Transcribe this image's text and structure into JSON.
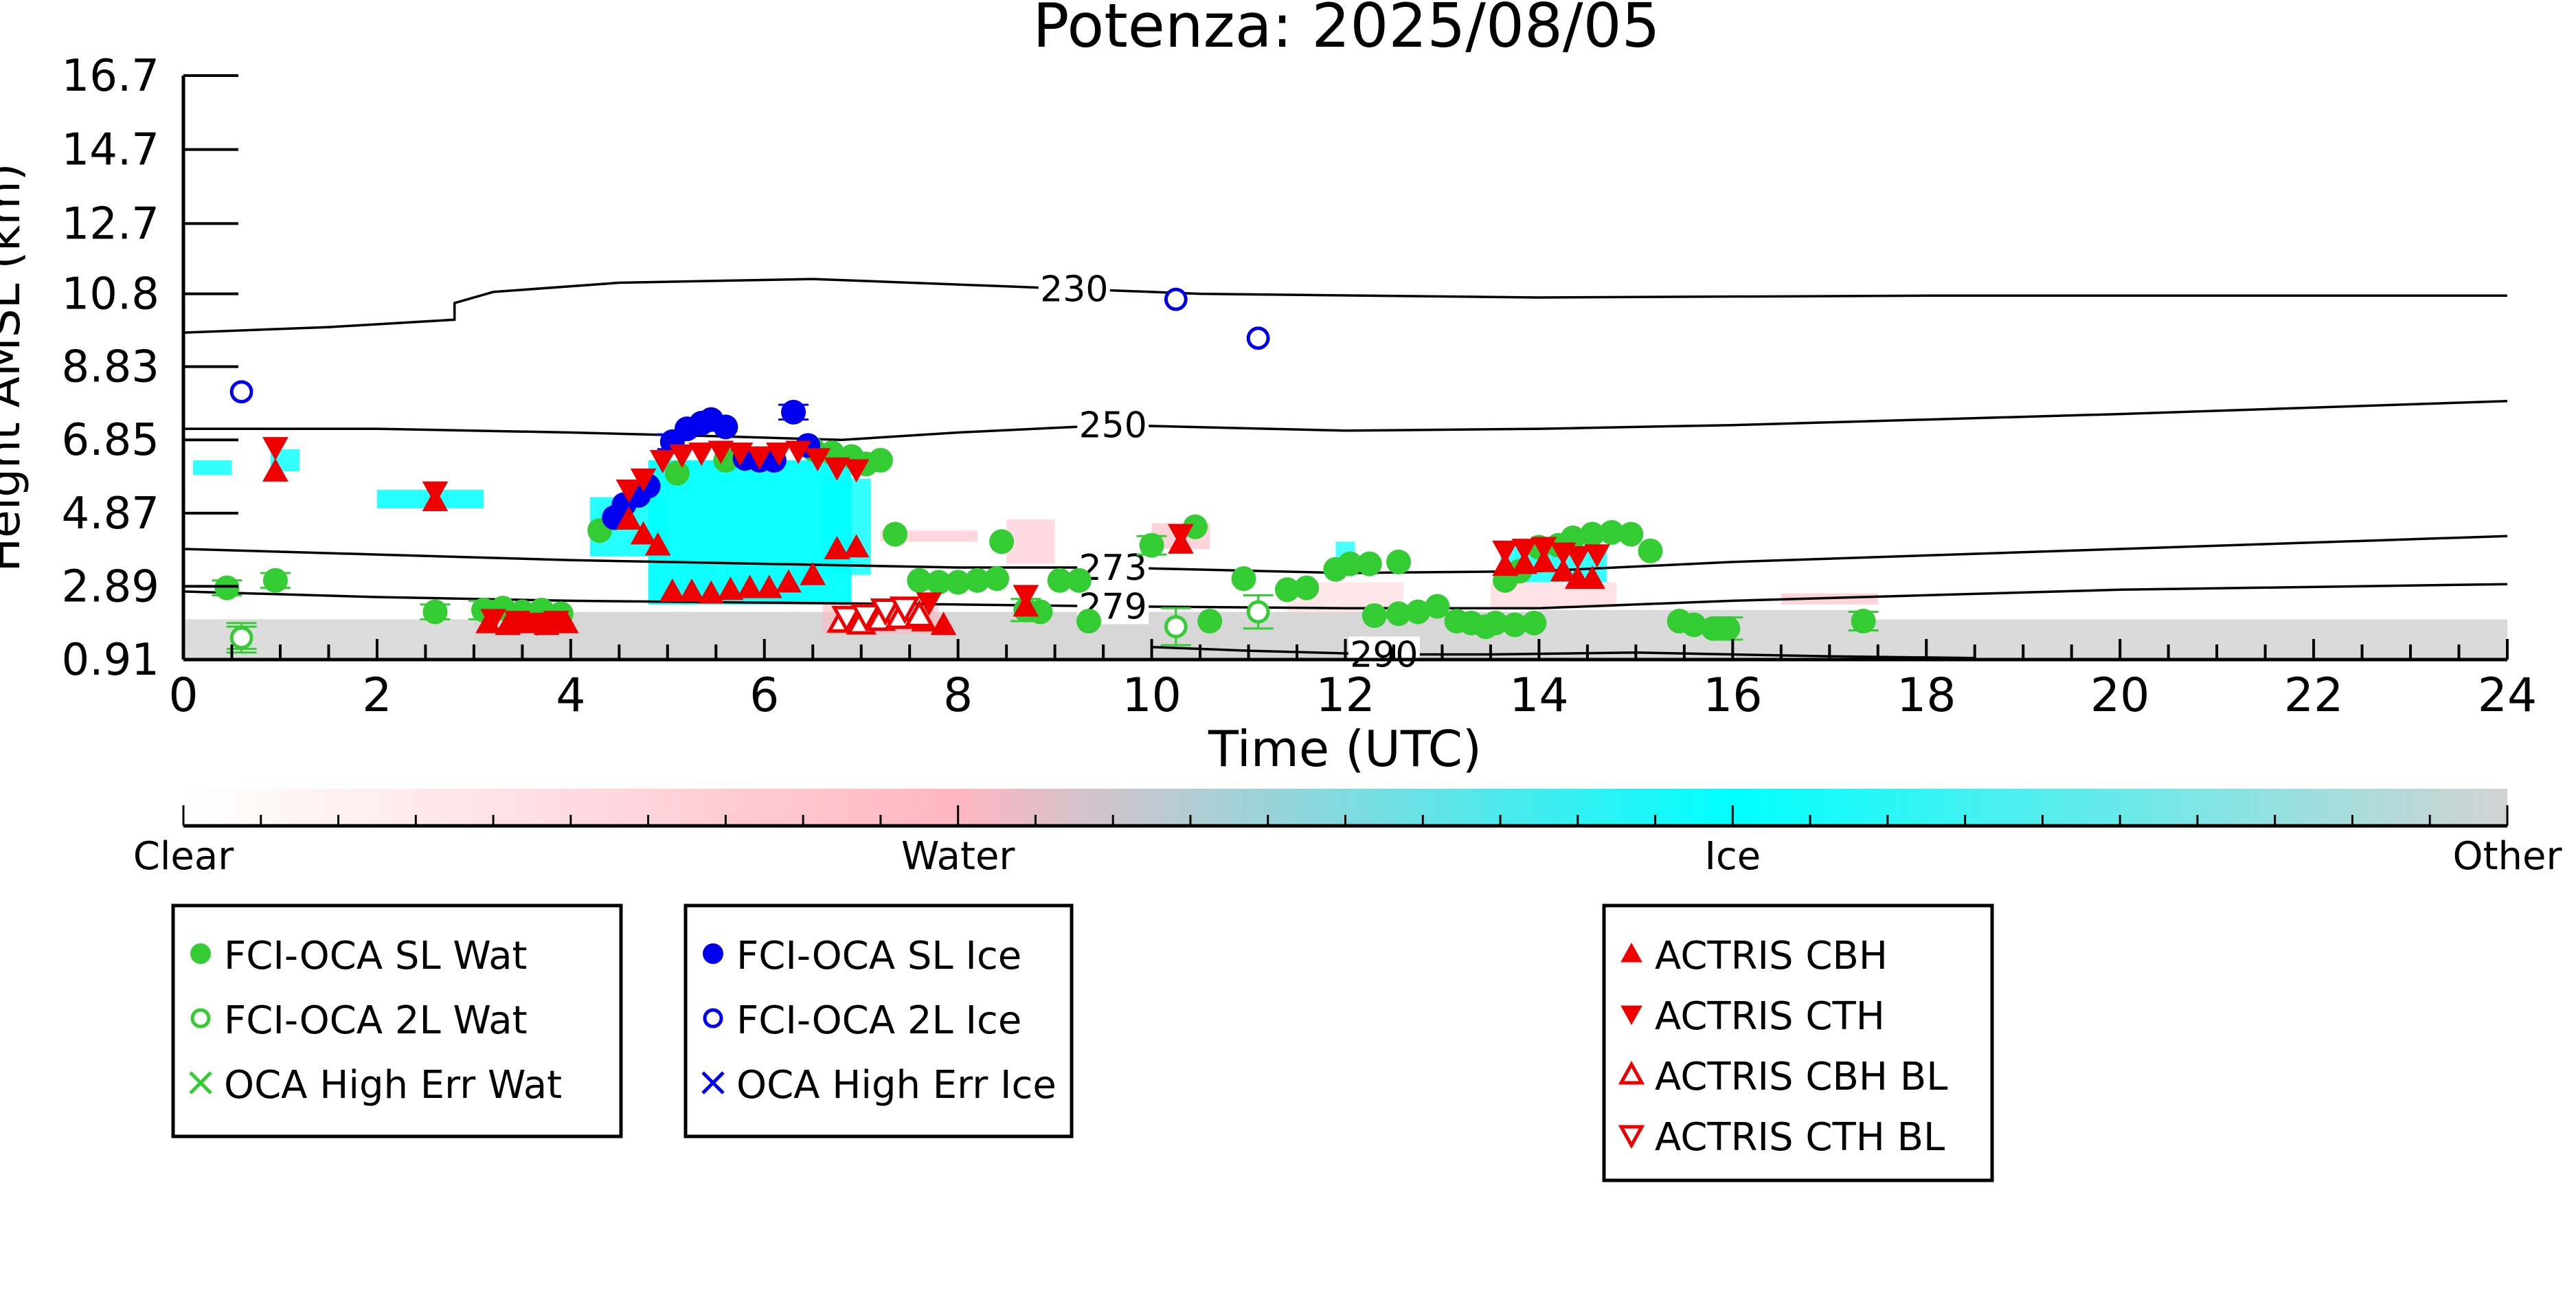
{
  "chart_data": {
    "type": "scatter",
    "title": "Potenza: 2025/08/05",
    "xlabel": "Time (UTC)",
    "ylabel": "Height AMSL (km)",
    "xlim": [
      0,
      24
    ],
    "ylim": [
      0.91,
      16.7
    ],
    "xticks": [
      "0",
      "2",
      "4",
      "6",
      "8",
      "10",
      "12",
      "14",
      "16",
      "18",
      "20",
      "22",
      "24"
    ],
    "yticks": [
      "0.91",
      "2.89",
      "4.87",
      "6.85",
      "8.83",
      "10.8",
      "12.7",
      "14.7",
      "16.7"
    ],
    "ytick_values": [
      0.91,
      2.89,
      4.87,
      6.85,
      8.83,
      10.8,
      12.7,
      14.7,
      16.7
    ],
    "colorbar": {
      "labels": [
        "Clear",
        "Water",
        "Ice",
        "Other"
      ],
      "colors": [
        "#ffffff",
        "#ffb6c1",
        "#00ffff",
        "#d3d3d3"
      ]
    },
    "contours": [
      {
        "label": "230",
        "label_x": 9.2,
        "points": [
          [
            0,
            9.75
          ],
          [
            1.5,
            9.9
          ],
          [
            2.8,
            10.1
          ],
          [
            2.8,
            10.55
          ],
          [
            3.2,
            10.85
          ],
          [
            4.5,
            11.1
          ],
          [
            6.5,
            11.2
          ],
          [
            8.5,
            11.0
          ],
          [
            10.5,
            10.8
          ],
          [
            14,
            10.7
          ],
          [
            18,
            10.75
          ],
          [
            24,
            10.75
          ]
        ]
      },
      {
        "label": "250",
        "label_x": 9.6,
        "points": [
          [
            0,
            7.15
          ],
          [
            2,
            7.15
          ],
          [
            4,
            7.05
          ],
          [
            5.5,
            6.95
          ],
          [
            6.8,
            6.85
          ],
          [
            8,
            7.05
          ],
          [
            9.6,
            7.25
          ],
          [
            12,
            7.1
          ],
          [
            14,
            7.15
          ],
          [
            16,
            7.25
          ],
          [
            20,
            7.55
          ],
          [
            24,
            7.9
          ]
        ]
      },
      {
        "label": "273",
        "label_x": 9.6,
        "points": [
          [
            0,
            3.9
          ],
          [
            2,
            3.75
          ],
          [
            4,
            3.6
          ],
          [
            6,
            3.5
          ],
          [
            8,
            3.4
          ],
          [
            9.6,
            3.4
          ],
          [
            12,
            3.25
          ],
          [
            14,
            3.3
          ],
          [
            16,
            3.55
          ],
          [
            20,
            3.9
          ],
          [
            24,
            4.25
          ]
        ]
      },
      {
        "label": "279",
        "label_x": 9.6,
        "points": [
          [
            0,
            2.75
          ],
          [
            2,
            2.6
          ],
          [
            4,
            2.5
          ],
          [
            6,
            2.45
          ],
          [
            8,
            2.4
          ],
          [
            9.6,
            2.35
          ],
          [
            12,
            2.3
          ],
          [
            14,
            2.3
          ],
          [
            16,
            2.5
          ],
          [
            20,
            2.8
          ],
          [
            24,
            2.95
          ]
        ]
      },
      {
        "label": "290",
        "label_x": 12.4,
        "points": [
          [
            10,
            1.25
          ],
          [
            11,
            1.15
          ],
          [
            12.4,
            1.05
          ],
          [
            13.5,
            1.05
          ],
          [
            15,
            1.1
          ],
          [
            17,
            1.0
          ],
          [
            18.5,
            0.95
          ]
        ]
      }
    ],
    "series": [
      {
        "name": "FCI-OCA SL Wat",
        "marker": "circle-filled",
        "color": "#33cc33",
        "points": [
          [
            0.45,
            2.85
          ],
          [
            0.95,
            3.05
          ],
          [
            2.6,
            2.2
          ],
          [
            3.1,
            2.25
          ],
          [
            3.3,
            2.3
          ],
          [
            3.5,
            2.2
          ],
          [
            3.7,
            2.25
          ],
          [
            3.9,
            2.15
          ],
          [
            4.3,
            4.4
          ],
          [
            5.1,
            5.95
          ],
          [
            5.6,
            6.3
          ],
          [
            6.5,
            6.6
          ],
          [
            6.7,
            6.5
          ],
          [
            6.9,
            6.4
          ],
          [
            7.05,
            6.2
          ],
          [
            7.2,
            6.3
          ],
          [
            7.35,
            4.3
          ],
          [
            7.6,
            3.05
          ],
          [
            7.8,
            3.0
          ],
          [
            8.0,
            3.0
          ],
          [
            8.2,
            3.05
          ],
          [
            8.4,
            3.1
          ],
          [
            8.45,
            4.1
          ],
          [
            8.7,
            2.25
          ],
          [
            8.85,
            2.2
          ],
          [
            9.05,
            3.05
          ],
          [
            9.25,
            3.05
          ],
          [
            9.35,
            1.95
          ],
          [
            10.0,
            4.0
          ],
          [
            10.45,
            4.5
          ],
          [
            10.6,
            1.95
          ],
          [
            10.95,
            3.1
          ],
          [
            11.4,
            2.8
          ],
          [
            11.6,
            2.85
          ],
          [
            11.9,
            3.35
          ],
          [
            12.05,
            3.5
          ],
          [
            12.25,
            3.5
          ],
          [
            12.55,
            3.55
          ],
          [
            12.3,
            2.1
          ],
          [
            12.55,
            2.15
          ],
          [
            12.75,
            2.2
          ],
          [
            12.95,
            2.35
          ],
          [
            13.15,
            1.95
          ],
          [
            13.3,
            1.9
          ],
          [
            13.45,
            1.8
          ],
          [
            13.55,
            1.9
          ],
          [
            13.75,
            1.85
          ],
          [
            13.95,
            1.9
          ],
          [
            13.65,
            3.05
          ],
          [
            13.8,
            3.3
          ],
          [
            14.0,
            3.95
          ],
          [
            14.2,
            4.0
          ],
          [
            14.35,
            4.2
          ],
          [
            14.55,
            4.3
          ],
          [
            14.75,
            4.35
          ],
          [
            14.95,
            4.3
          ],
          [
            15.15,
            3.85
          ],
          [
            15.45,
            1.95
          ],
          [
            15.6,
            1.85
          ],
          [
            15.8,
            1.75
          ],
          [
            15.95,
            1.75
          ],
          [
            17.35,
            1.95
          ]
        ]
      },
      {
        "name": "FCI-OCA 2L Wat",
        "marker": "circle-open",
        "color": "#33cc33",
        "points": [
          [
            0.6,
            1.5
          ],
          [
            10.25,
            1.8
          ],
          [
            11.1,
            2.2
          ]
        ]
      },
      {
        "name": "OCA High Err Wat",
        "marker": "x",
        "color": "#33cc33",
        "points": []
      },
      {
        "name": "FCI-OCA SL Ice",
        "marker": "circle-filled",
        "color": "#0000ee",
        "points": [
          [
            4.45,
            4.75
          ],
          [
            4.55,
            5.1
          ],
          [
            4.7,
            5.35
          ],
          [
            4.8,
            5.6
          ],
          [
            5.05,
            6.8
          ],
          [
            5.2,
            7.15
          ],
          [
            5.35,
            7.3
          ],
          [
            5.45,
            7.4
          ],
          [
            5.6,
            7.2
          ],
          [
            5.8,
            6.35
          ],
          [
            5.95,
            6.3
          ],
          [
            6.1,
            6.3
          ],
          [
            6.3,
            7.6
          ],
          [
            6.45,
            6.7
          ]
        ]
      },
      {
        "name": "FCI-OCA 2L Ice",
        "marker": "circle-open",
        "color": "#0000ee",
        "points": [
          [
            0.6,
            8.15
          ],
          [
            10.25,
            10.65
          ],
          [
            11.1,
            9.6
          ]
        ]
      },
      {
        "name": "OCA High Err Ice",
        "marker": "x",
        "color": "#0000ee",
        "points": []
      },
      {
        "name": "ACTRIS CBH",
        "marker": "tri-up-filled",
        "color": "#ee0000",
        "points": [
          [
            0.95,
            6.0
          ],
          [
            2.6,
            5.2
          ],
          [
            3.15,
            1.9
          ],
          [
            3.35,
            1.85
          ],
          [
            3.55,
            1.9
          ],
          [
            3.75,
            1.85
          ],
          [
            3.95,
            1.9
          ],
          [
            4.6,
            4.7
          ],
          [
            4.75,
            4.3
          ],
          [
            4.9,
            4.0
          ],
          [
            5.05,
            2.75
          ],
          [
            5.25,
            2.75
          ],
          [
            5.45,
            2.7
          ],
          [
            5.65,
            2.8
          ],
          [
            5.85,
            2.85
          ],
          [
            6.05,
            2.85
          ],
          [
            6.25,
            3.0
          ],
          [
            6.5,
            3.2
          ],
          [
            6.75,
            3.9
          ],
          [
            6.95,
            3.95
          ],
          [
            7.65,
            1.95
          ],
          [
            7.85,
            1.85
          ],
          [
            8.7,
            2.35
          ],
          [
            10.3,
            4.05
          ],
          [
            13.65,
            3.45
          ],
          [
            13.85,
            3.5
          ],
          [
            14.05,
            3.55
          ],
          [
            14.25,
            3.3
          ],
          [
            14.4,
            3.1
          ],
          [
            14.55,
            3.1
          ]
        ]
      },
      {
        "name": "ACTRIS CTH",
        "marker": "tri-down-filled",
        "color": "#ee0000",
        "points": [
          [
            0.95,
            6.65
          ],
          [
            2.6,
            5.45
          ],
          [
            3.2,
            2.0
          ],
          [
            3.45,
            1.95
          ],
          [
            3.65,
            1.9
          ],
          [
            3.85,
            1.95
          ],
          [
            4.6,
            5.5
          ],
          [
            4.75,
            5.8
          ],
          [
            4.95,
            6.3
          ],
          [
            5.15,
            6.45
          ],
          [
            5.35,
            6.5
          ],
          [
            5.55,
            6.55
          ],
          [
            5.75,
            6.5
          ],
          [
            5.95,
            6.4
          ],
          [
            6.15,
            6.5
          ],
          [
            6.35,
            6.55
          ],
          [
            6.55,
            6.35
          ],
          [
            6.75,
            6.1
          ],
          [
            6.95,
            6.05
          ],
          [
            7.7,
            2.45
          ],
          [
            8.7,
            2.65
          ],
          [
            10.3,
            4.3
          ],
          [
            13.65,
            3.85
          ],
          [
            13.85,
            3.9
          ],
          [
            14.05,
            3.95
          ],
          [
            14.25,
            3.8
          ],
          [
            14.4,
            3.7
          ],
          [
            14.6,
            3.75
          ]
        ]
      },
      {
        "name": "ACTRIS CBH BL",
        "marker": "tri-up-open",
        "color": "#ee0000",
        "points": [
          [
            6.8,
            1.95
          ],
          [
            7.0,
            1.9
          ],
          [
            7.2,
            2.0
          ],
          [
            7.4,
            2.05
          ],
          [
            7.6,
            2.1
          ]
        ]
      },
      {
        "name": "ACTRIS CTH BL",
        "marker": "tri-down-open",
        "color": "#ee0000",
        "points": [
          [
            6.85,
            2.05
          ],
          [
            7.05,
            2.1
          ],
          [
            7.25,
            2.25
          ],
          [
            7.45,
            2.3
          ]
        ]
      }
    ],
    "error_bars": [
      [
        0.45,
        0.2
      ],
      [
        0.95,
        0.2
      ],
      [
        2.6,
        0.2
      ],
      [
        3.1,
        0.25
      ],
      [
        10.25,
        0.5
      ],
      [
        11.1,
        0.45
      ],
      [
        0.6,
        0.4
      ],
      [
        0.6,
        0.3
      ],
      [
        5.05,
        0.2
      ],
      [
        6.3,
        0.2
      ],
      [
        15.95,
        0.3
      ],
      [
        17.35,
        0.25
      ],
      [
        8.7,
        0.3
      ],
      [
        10.0,
        0.25
      ]
    ],
    "legend": {
      "placement": "below",
      "groups": [
        [
          "FCI-OCA SL Wat",
          "FCI-OCA 2L Wat",
          "OCA High Err Wat"
        ],
        [
          "FCI-OCA SL Ice",
          "FCI-OCA 2L Ice",
          "OCA High Err Ice"
        ],
        [
          "ACTRIS CBH",
          "ACTRIS CTH",
          "ACTRIS CBH BL",
          "ACTRIS CTH BL"
        ]
      ]
    }
  }
}
